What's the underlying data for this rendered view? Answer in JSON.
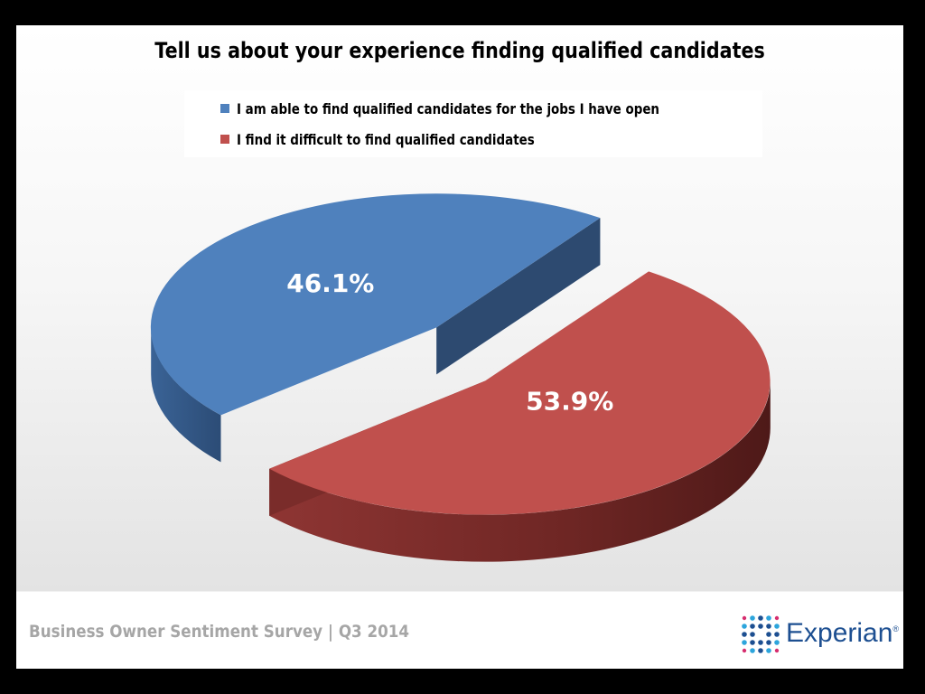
{
  "chart_data": {
    "type": "pie",
    "title": "Tell us about your experience finding qualified candidates",
    "series": [
      {
        "name": "I am able to find qualified candidates for the jobs I have open",
        "value": 46.1,
        "label": "46.1%",
        "color": "#4f81bd"
      },
      {
        "name": "I find it difficult to find qualified candidates",
        "value": 53.9,
        "label": "53.9%",
        "color": "#c0504d"
      }
    ],
    "legend": "top",
    "style": "3d-exploded"
  },
  "footer": {
    "text": "Business Owner Sentiment Survey | Q3 2014"
  },
  "brand": {
    "name": "Experian",
    "mark": "®",
    "colors": {
      "blue": "#1d4f91",
      "pink": "#d62e6f",
      "cyan": "#2da5dc"
    }
  }
}
